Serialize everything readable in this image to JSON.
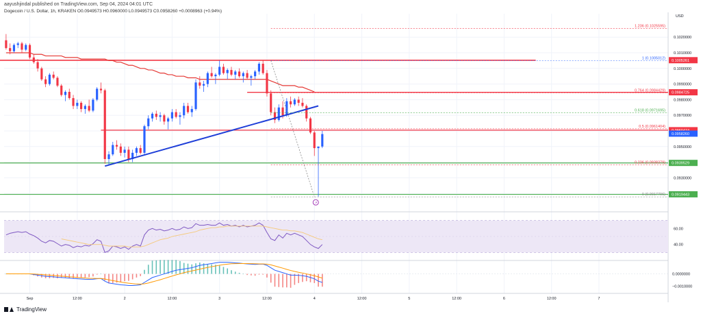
{
  "header": {
    "author_line": "aayushjindal published on TradingView.com, Sep 04, 2024 04:01 UTC",
    "symbol_line": "Dogecoin / U.S. Dollar, 1h, KRAKEN  O0.0949573  H0.0960000  L0.0949573  C0.0958260  +0.0008963 (+0.94%)"
  },
  "brand": {
    "name": "TradingView"
  },
  "colors": {
    "bull": "#2962ff",
    "bear": "#f23645",
    "ma": "#e53935",
    "trendline": "#1e3ed8",
    "support": "#4caf50",
    "fib": "#f23645",
    "rsi_line": "#7e57c2",
    "rsi_band": "#ede7f6",
    "macd": "#2962ff",
    "signal": "#ff9800"
  },
  "chart_data": {
    "type": "candlestick",
    "axis_currency": "USD",
    "ylim": [
      0.091,
      0.1035
    ],
    "y_ticks": [
      0.092,
      0.093,
      0.094,
      0.095,
      0.096,
      0.097,
      0.098,
      0.099,
      0.1,
      0.101,
      0.102
    ],
    "y_tick_labels": [
      "0.0920000",
      "0.0930000",
      "0.0940000",
      "0.0950000",
      "0.0960000",
      "0.0970000",
      "0.0980000",
      "0.0990000",
      "0.1000000",
      "0.1010000",
      "0.1020000"
    ],
    "x_ticks": [
      {
        "label": "Sep",
        "bar": 6
      },
      {
        "label": "12:00",
        "bar": 18
      },
      {
        "label": "2",
        "bar": 30
      },
      {
        "label": "12:00",
        "bar": 42
      },
      {
        "label": "3",
        "bar": 54
      },
      {
        "label": "12:00",
        "bar": 66
      },
      {
        "label": "4",
        "bar": 78
      },
      {
        "label": "12:00",
        "bar": 90
      },
      {
        "label": "5",
        "bar": 102
      },
      {
        "label": "12:00",
        "bar": 114
      },
      {
        "label": "6",
        "bar": 126
      },
      {
        "label": "12:00",
        "bar": 138
      },
      {
        "label": "7",
        "bar": 150
      }
    ],
    "bar_span": 168,
    "candles": [
      [
        0.1018,
        0.1022,
        0.1012,
        0.1013
      ],
      [
        0.1013,
        0.1016,
        0.1009,
        0.1011
      ],
      [
        0.1011,
        0.1016,
        0.101,
        0.1015
      ],
      [
        0.1015,
        0.1017,
        0.1013,
        0.1016
      ],
      [
        0.1016,
        0.1017,
        0.101,
        0.1012
      ],
      [
        0.1012,
        0.1016,
        0.1011,
        0.1015
      ],
      [
        0.1015,
        0.1016,
        0.1006,
        0.1007
      ],
      [
        0.1007,
        0.1009,
        0.1003,
        0.1004
      ],
      [
        0.1004,
        0.1006,
        0.0998,
        0.1
      ],
      [
        0.1,
        0.1001,
        0.0992,
        0.0993
      ],
      [
        0.0993,
        0.0995,
        0.0988,
        0.099
      ],
      [
        0.099,
        0.0997,
        0.0989,
        0.0996
      ],
      [
        0.0996,
        0.0998,
        0.0993,
        0.0994
      ],
      [
        0.0994,
        0.0995,
        0.0988,
        0.0989
      ],
      [
        0.0989,
        0.099,
        0.0982,
        0.0983
      ],
      [
        0.0983,
        0.0986,
        0.0979,
        0.0985
      ],
      [
        0.0985,
        0.0987,
        0.098,
        0.0981
      ],
      [
        0.0981,
        0.0983,
        0.0974,
        0.0976
      ],
      [
        0.0976,
        0.098,
        0.0974,
        0.0978
      ],
      [
        0.0978,
        0.0979,
        0.0972,
        0.0974
      ],
      [
        0.0974,
        0.0977,
        0.0971,
        0.0976
      ],
      [
        0.0976,
        0.098,
        0.0972,
        0.0973
      ],
      [
        0.0973,
        0.0981,
        0.0972,
        0.098
      ],
      [
        0.098,
        0.0988,
        0.0979,
        0.0987
      ],
      [
        0.0987,
        0.0991,
        0.0984,
        0.0986
      ],
      [
        0.0986,
        0.0987,
        0.0939,
        0.0942
      ],
      [
        0.0942,
        0.0947,
        0.0938,
        0.0945
      ],
      [
        0.0945,
        0.0953,
        0.0944,
        0.0951
      ],
      [
        0.0951,
        0.0954,
        0.0948,
        0.095
      ],
      [
        0.095,
        0.0952,
        0.0944,
        0.0946
      ],
      [
        0.0946,
        0.095,
        0.0943,
        0.0948
      ],
      [
        0.0948,
        0.095,
        0.094,
        0.0942
      ],
      [
        0.0942,
        0.0948,
        0.094,
        0.0946
      ],
      [
        0.0946,
        0.095,
        0.0944,
        0.0949
      ],
      [
        0.0949,
        0.0951,
        0.0945,
        0.0946
      ],
      [
        0.0946,
        0.0964,
        0.0945,
        0.0963
      ],
      [
        0.0963,
        0.097,
        0.0961,
        0.0968
      ],
      [
        0.0968,
        0.0972,
        0.0966,
        0.0971
      ],
      [
        0.0971,
        0.0973,
        0.0967,
        0.0969
      ],
      [
        0.0969,
        0.0972,
        0.0966,
        0.097
      ],
      [
        0.097,
        0.0971,
        0.0964,
        0.0966
      ],
      [
        0.0966,
        0.0969,
        0.0961,
        0.0968
      ],
      [
        0.0968,
        0.0974,
        0.0966,
        0.0972
      ],
      [
        0.0972,
        0.0974,
        0.0968,
        0.0969
      ],
      [
        0.0969,
        0.0972,
        0.0964,
        0.097
      ],
      [
        0.097,
        0.0978,
        0.0968,
        0.0976
      ],
      [
        0.0976,
        0.0978,
        0.0971,
        0.0972
      ],
      [
        0.0972,
        0.0976,
        0.0969,
        0.0974
      ],
      [
        0.0974,
        0.0993,
        0.0973,
        0.0991
      ],
      [
        0.0991,
        0.0995,
        0.0987,
        0.0989
      ],
      [
        0.0989,
        0.0992,
        0.0985,
        0.099
      ],
      [
        0.099,
        0.0998,
        0.0988,
        0.0997
      ],
      [
        0.0997,
        0.1001,
        0.0994,
        0.0995
      ],
      [
        0.0995,
        0.0997,
        0.099,
        0.0996
      ],
      [
        0.0996,
        0.1005,
        0.0995,
        0.1001
      ],
      [
        0.1001,
        0.1003,
        0.0996,
        0.0997
      ],
      [
        0.0997,
        0.1,
        0.0993,
        0.0999
      ],
      [
        0.0999,
        0.1001,
        0.0995,
        0.0996
      ],
      [
        0.0996,
        0.0999,
        0.0993,
        0.0998
      ],
      [
        0.0998,
        0.1,
        0.0994,
        0.0995
      ],
      [
        0.0995,
        0.0998,
        0.0991,
        0.0997
      ],
      [
        0.0997,
        0.0999,
        0.0993,
        0.0994
      ],
      [
        0.0994,
        0.0996,
        0.0989,
        0.0995
      ],
      [
        0.0995,
        0.0999,
        0.0993,
        0.0998
      ],
      [
        0.0998,
        0.1004,
        0.0996,
        0.1003
      ],
      [
        0.1003,
        0.1005,
        0.0996,
        0.0997
      ],
      [
        0.0997,
        0.0999,
        0.0982,
        0.0984
      ],
      [
        0.0984,
        0.0986,
        0.097,
        0.0972
      ],
      [
        0.0972,
        0.0975,
        0.0965,
        0.0967
      ],
      [
        0.0967,
        0.0977,
        0.0966,
        0.0975
      ],
      [
        0.0975,
        0.0979,
        0.0968,
        0.097
      ],
      [
        0.097,
        0.0981,
        0.0969,
        0.0979
      ],
      [
        0.0979,
        0.0982,
        0.0975,
        0.0977
      ],
      [
        0.0977,
        0.0981,
        0.0976,
        0.098
      ],
      [
        0.098,
        0.0982,
        0.0976,
        0.0978
      ],
      [
        0.0978,
        0.0981,
        0.0975,
        0.0976
      ],
      [
        0.0976,
        0.0977,
        0.0966,
        0.0968
      ],
      [
        0.0968,
        0.0969,
        0.0958,
        0.0959
      ],
      [
        0.0959,
        0.096,
        0.0944,
        0.0949
      ],
      [
        0.0949,
        0.095,
        0.0918,
        0.095
      ],
      [
        0.095,
        0.096,
        0.0949,
        0.0958
      ]
    ],
    "moving_average": {
      "start_bar": 0,
      "values": [
        0.101,
        0.101,
        0.101,
        0.101,
        0.101,
        0.101,
        0.101,
        0.1009,
        0.1009,
        0.1009,
        0.1008,
        0.1008,
        0.1008,
        0.1008,
        0.1008,
        0.1007,
        0.1007,
        0.1007,
        0.1007,
        0.1006,
        0.1006,
        0.1006,
        0.1006,
        0.1006,
        0.1006,
        0.1006,
        0.1005,
        0.1005,
        0.1004,
        0.1004,
        0.1003,
        0.1002,
        0.1002,
        0.1001,
        0.1,
        0.1,
        0.0999,
        0.0999,
        0.0998,
        0.0997,
        0.0997,
        0.0996,
        0.0996,
        0.0995,
        0.0995,
        0.0995,
        0.0994,
        0.0994,
        0.0994,
        0.0993,
        0.0993,
        0.0993,
        0.0993,
        0.0993,
        0.0993,
        0.0993,
        0.0993,
        0.0993,
        0.0993,
        0.0993,
        0.0993,
        0.0993,
        0.0993,
        0.0993,
        0.0993,
        0.0993,
        0.0993,
        0.0992,
        0.0991,
        0.099,
        0.0989,
        0.0989,
        0.0989,
        0.0989,
        0.0988,
        0.0988,
        0.0987,
        0.0986,
        0.0985
      ]
    },
    "trendline": {
      "from": {
        "bar": 25,
        "price": 0.09375
      },
      "to": {
        "bar": 79,
        "price": 0.0976
      }
    },
    "resistance_line": {
      "price": 0.10052,
      "from_bar": -6,
      "to_bar": 134
    },
    "support_lines": [
      {
        "price": 0.09395,
        "from_bar": -6
      },
      {
        "price": 0.09194,
        "from_bar": -6
      }
    ],
    "mid_line": {
      "price": 0.09605,
      "from_bar": 24
    },
    "fib_anchor_bar": 67,
    "fib_levels": [
      {
        "level": "0.236 (0.0938379)",
        "price": 0.0938379,
        "color": "#f23645"
      },
      {
        "level": "0.5 (0.0961404)",
        "price": 0.0961404,
        "color": "#f23645"
      },
      {
        "level": "0.618 (0.0971695)",
        "price": 0.0971695,
        "color": "#4caf50"
      },
      {
        "level": "0.764 (0.0984429)",
        "price": 0.0984429,
        "color": "#f23645"
      },
      {
        "level": "1 (0.1005012)",
        "price": 0.1005012,
        "color": "#2962ff"
      },
      {
        "level": "0 (0.0917796)",
        "price": 0.0917796,
        "color": "#888888"
      },
      {
        "level": "1.236 (0.1025595)",
        "price": 0.1025595,
        "color": "#f23645"
      }
    ],
    "price_tags": [
      {
        "label": "0.1005261",
        "price": 0.1005261,
        "color": "#f23645"
      },
      {
        "label": "0.0984725",
        "price": 0.0984725,
        "color": "#f23645"
      },
      {
        "label": "0.0960474",
        "price": 0.0960474,
        "color": "#f23645"
      },
      {
        "label": "0.0958260",
        "price": 0.095826,
        "color": "#2962ff"
      },
      {
        "label": "0.0939529",
        "price": 0.0939529,
        "color": "#4caf50"
      },
      {
        "label": "0.0919443",
        "price": 0.0919443,
        "color": "#4caf50"
      }
    ],
    "rsi": {
      "ylim": [
        20,
        80
      ],
      "band": [
        30,
        70
      ],
      "ticks": [
        {
          "v": 60,
          "label": "60.00"
        },
        {
          "v": 40,
          "label": "40.00"
        }
      ],
      "values": [
        52,
        54,
        55,
        56,
        55,
        56,
        53,
        51,
        48,
        44,
        42,
        45,
        44,
        41,
        38,
        40,
        39,
        36,
        38,
        37,
        39,
        38,
        41,
        46,
        44,
        30,
        32,
        38,
        37,
        35,
        37,
        34,
        38,
        40,
        38,
        52,
        58,
        60,
        58,
        59,
        57,
        58,
        60,
        58,
        59,
        62,
        60,
        61,
        66,
        64,
        64,
        65,
        64,
        64,
        67,
        64,
        65,
        63,
        64,
        62,
        64,
        62,
        63,
        64,
        67,
        64,
        55,
        47,
        45,
        52,
        48,
        54,
        52,
        54,
        52,
        50,
        45,
        40,
        37,
        35,
        40
      ],
      "ma_values": [
        null,
        null,
        null,
        null,
        null,
        null,
        null,
        null,
        null,
        null,
        null,
        null,
        null,
        null,
        47,
        46,
        45,
        44,
        43,
        42,
        41,
        40,
        40,
        40,
        40,
        39,
        38,
        38,
        38,
        38,
        38,
        37,
        37,
        37,
        37,
        38,
        40,
        42,
        44,
        46,
        47,
        48,
        50,
        51,
        52,
        53,
        54,
        55,
        56,
        58,
        59,
        60,
        61,
        61,
        62,
        62,
        63,
        63,
        63,
        63,
        63,
        63,
        63,
        63,
        63,
        63,
        62,
        61,
        60,
        59,
        58,
        58,
        57,
        57,
        56,
        55,
        53,
        51,
        49,
        47,
        46
      ]
    },
    "macd": {
      "ylim": [
        -0.0016,
        0.0011
      ],
      "ticks": [
        {
          "v": 0.0,
          "label": "0.0000000"
        },
        {
          "v": -0.001,
          "label": "−0.0010000"
        }
      ],
      "macd_values": [
        0.0,
        0.0,
        0.0,
        0.0,
        0.0,
        0.0,
        0.0,
        -5e-05,
        -0.0001,
        -0.00015,
        -0.0002,
        -0.00022,
        -0.00024,
        -0.00028,
        -0.0003,
        -0.00032,
        -0.00035,
        -0.00038,
        -0.0004,
        -0.00042,
        -0.00044,
        -0.00045,
        -0.00044,
        -0.0004,
        -0.00038,
        -0.0006,
        -0.00075,
        -0.0008,
        -0.00085,
        -0.0009,
        -0.00092,
        -0.00095,
        -0.00095,
        -0.00093,
        -0.0009,
        -0.0007,
        -0.0005,
        -0.0003,
        -0.0002,
        -0.0001,
        0.0,
        0.0001,
        0.0002,
        0.0003,
        0.00035,
        0.0004,
        0.00045,
        0.0005,
        0.0006,
        0.0007,
        0.00075,
        0.0008,
        0.00085,
        0.0009,
        0.00095,
        0.00095,
        0.00095,
        0.00093,
        0.0009,
        0.00088,
        0.00085,
        0.00082,
        0.0008,
        0.00078,
        0.0008,
        0.0008,
        0.0007,
        0.0005,
        0.0003,
        0.0002,
        0.0001,
        0.0,
        -0.0001,
        -0.0001,
        -0.00012,
        -0.00015,
        -0.0002,
        -0.0003,
        -0.0004,
        -0.0006,
        -0.0007
      ],
      "signal_values": [
        0.0,
        0.0,
        0.0,
        0.0,
        0.0,
        0.0,
        0.0,
        -1e-05,
        -3e-05,
        -5e-05,
        -8e-05,
        -0.0001,
        -0.00013,
        -0.00016,
        -0.00019,
        -0.00021,
        -0.00024,
        -0.00026,
        -0.00029,
        -0.00031,
        -0.00034,
        -0.00036,
        -0.00037,
        -0.00038,
        -0.00038,
        -0.00042,
        -0.00049,
        -0.00055,
        -0.00061,
        -0.00067,
        -0.00072,
        -0.00076,
        -0.0008,
        -0.00083,
        -0.00084,
        -0.00081,
        -0.00075,
        -0.00066,
        -0.00057,
        -0.00048,
        -0.00038,
        -0.00028,
        -0.00018,
        -8e-05,
        0.0,
        0.0001,
        0.00017,
        0.00024,
        0.00031,
        0.00039,
        0.00046,
        0.00053,
        0.00059,
        0.00065,
        0.00071,
        0.00076,
        0.0008,
        0.00083,
        0.00084,
        0.00085,
        0.00085,
        0.00085,
        0.00084,
        0.00083,
        0.00082,
        0.00082,
        0.0008,
        0.00074,
        0.00065,
        0.00056,
        0.00047,
        0.00037,
        0.00028,
        0.0002,
        0.00013,
        7e-05,
        0.0,
        -7e-05,
        -0.00015,
        -0.00025,
        -0.00035
      ]
    }
  }
}
